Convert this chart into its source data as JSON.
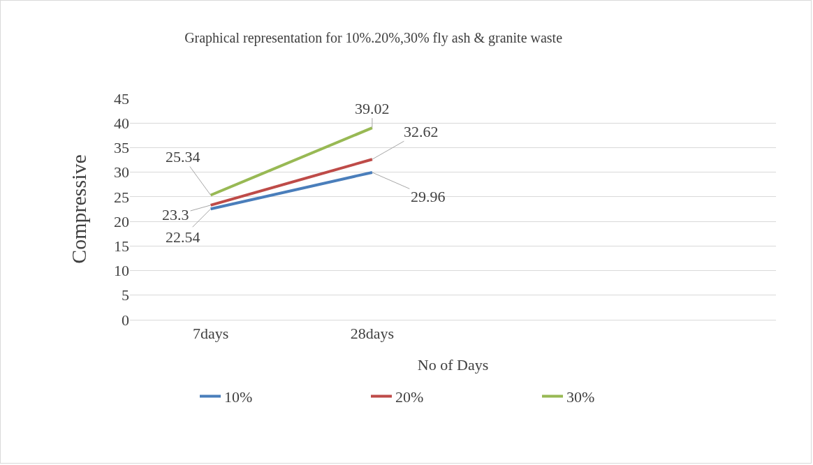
{
  "chart_data": {
    "type": "line",
    "title": "Graphical representation for 10%.20%,30% fly ash & granite waste",
    "xlabel": "No of Days",
    "ylabel": "Compressive",
    "categories": [
      "7days",
      "28days",
      null,
      null
    ],
    "series": [
      {
        "name": "10%",
        "color": "#4a7ebb",
        "values": [
          22.54,
          29.96,
          null,
          null
        ]
      },
      {
        "name": "20%",
        "color": "#be4b48",
        "values": [
          23.3,
          32.62,
          null,
          null
        ]
      },
      {
        "name": "30%",
        "color": "#98b954",
        "values": [
          25.34,
          39.02,
          null,
          null
        ]
      }
    ],
    "ylim": [
      0,
      45
    ],
    "yticks": [
      0,
      5,
      10,
      15,
      20,
      25,
      30,
      35,
      40,
      45
    ],
    "grid": "y",
    "legend": "bottom",
    "data_labels": true,
    "marker": "none",
    "line_style": "solid"
  }
}
